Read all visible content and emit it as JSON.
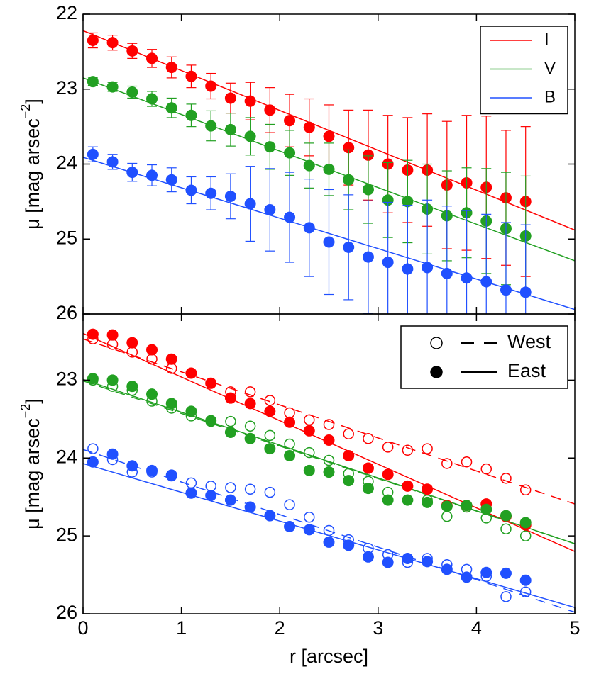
{
  "chart_data": [
    {
      "type": "scatter",
      "ylabel": "μ [mag arsec",
      "ylabel_sup": "−2",
      "ylabel_end": "]",
      "x": [
        0.1,
        0.3,
        0.5,
        0.7,
        0.9,
        1.1,
        1.3,
        1.5,
        1.7,
        1.9,
        2.1,
        2.3,
        2.5,
        2.7,
        2.9,
        3.1,
        3.3,
        3.5,
        3.7,
        3.9,
        4.1,
        4.3,
        4.5
      ],
      "xlim": [
        0,
        5
      ],
      "ylim": [
        22,
        26
      ],
      "invert_y": true,
      "yticks": [
        22,
        23,
        24,
        25,
        26
      ],
      "legend": "upper right",
      "series": [
        {
          "name": "I",
          "color": "#ff0000",
          "values": [
            22.35,
            22.38,
            22.49,
            22.59,
            22.71,
            22.83,
            22.96,
            23.12,
            23.16,
            23.28,
            23.42,
            23.51,
            23.63,
            23.78,
            23.88,
            24.0,
            24.08,
            24.08,
            24.28,
            24.25,
            24.31,
            24.45,
            24.5
          ],
          "errors": [
            0.1,
            0.1,
            0.1,
            0.12,
            0.14,
            0.15,
            0.17,
            0.2,
            0.25,
            0.3,
            0.35,
            0.38,
            0.42,
            0.5,
            0.6,
            0.65,
            0.7,
            0.75,
            0.85,
            0.9,
            0.95,
            0.9,
            1.0
          ],
          "fit_x": [
            0,
            5
          ],
          "fit_values": [
            22.22,
            24.88
          ]
        },
        {
          "name": "V",
          "color": "#22a022",
          "values": [
            22.9,
            22.97,
            23.04,
            23.13,
            23.25,
            23.35,
            23.49,
            23.54,
            23.63,
            23.77,
            23.85,
            24.02,
            24.07,
            24.21,
            24.34,
            24.48,
            24.5,
            24.6,
            24.69,
            24.65,
            24.76,
            24.86,
            24.96
          ],
          "errors": [
            0.05,
            0.06,
            0.08,
            0.1,
            0.13,
            0.15,
            0.2,
            0.22,
            0.25,
            0.3,
            0.3,
            0.3,
            0.35,
            0.4,
            0.45,
            0.5,
            0.55,
            0.6,
            0.6,
            0.6,
            0.7,
            0.75,
            0.8
          ],
          "fit_x": [
            0,
            5
          ],
          "fit_values": [
            22.85,
            25.29
          ]
        },
        {
          "name": "B",
          "color": "#2050ff",
          "values": [
            23.87,
            23.97,
            24.11,
            24.15,
            24.21,
            24.35,
            24.39,
            24.43,
            24.53,
            24.61,
            24.71,
            24.85,
            25.04,
            25.11,
            25.24,
            25.31,
            25.4,
            25.38,
            25.46,
            25.52,
            25.57,
            25.68,
            25.71
          ],
          "errors": [
            0.1,
            0.1,
            0.12,
            0.14,
            0.16,
            0.18,
            0.22,
            0.3,
            0.5,
            0.55,
            0.6,
            0.65,
            0.7,
            0.7,
            0.75,
            0.8,
            0.85,
            0.9,
            0.9,
            0.9,
            0.9,
            0.9,
            0.9
          ],
          "fit_x": [
            0,
            5
          ],
          "fit_values": [
            23.91,
            25.94
          ]
        }
      ]
    },
    {
      "type": "scatter",
      "xlabel": "r [arcsec]",
      "ylabel": "μ [mag arsec",
      "ylabel_sup": "−2",
      "ylabel_end": "]",
      "x": [
        0.1,
        0.3,
        0.5,
        0.7,
        0.9,
        1.1,
        1.3,
        1.5,
        1.7,
        1.9,
        2.1,
        2.3,
        2.5,
        2.7,
        2.9,
        3.1,
        3.3,
        3.5,
        3.7,
        3.9,
        4.1,
        4.3,
        4.5
      ],
      "xlim": [
        0,
        5
      ],
      "xticks": [
        0,
        1,
        2,
        3,
        4,
        5
      ],
      "ylim": [
        22.15,
        26
      ],
      "invert_y": true,
      "yticks": [
        23,
        24,
        25,
        26
      ],
      "legend": "upper right",
      "fit_x": [
        0,
        5
      ],
      "series": [
        {
          "name": "West",
          "marker": "open",
          "line": "dashed",
          "groups": [
            {
              "color": "#ff0000",
              "values": [
                22.47,
                22.54,
                22.64,
                22.73,
                22.85,
                22.91,
                23.04,
                23.15,
                23.15,
                23.26,
                23.42,
                23.51,
                23.57,
                23.69,
                23.75,
                23.86,
                23.9,
                23.88,
                24.07,
                24.05,
                24.14,
                24.26,
                24.41
              ],
              "fit_values": [
                22.47,
                24.59
              ]
            },
            {
              "color": "#22a022",
              "values": [
                23.0,
                23.08,
                23.13,
                23.27,
                23.36,
                23.46,
                23.53,
                23.53,
                23.59,
                23.71,
                23.82,
                23.93,
                24.03,
                24.2,
                24.3,
                24.44,
                24.54,
                24.54,
                24.75,
                24.63,
                24.77,
                24.91,
                25.0
              ],
              "fit_values": [
                23.01,
                25.1
              ]
            },
            {
              "color": "#2050ff",
              "values": [
                23.88,
                24.02,
                24.18,
                24.18,
                24.23,
                24.32,
                24.36,
                24.38,
                24.4,
                24.44,
                24.6,
                24.76,
                24.93,
                25.05,
                25.16,
                25.24,
                25.34,
                25.29,
                25.37,
                25.43,
                25.52,
                25.78,
                25.72
              ],
              "fit_values": [
                23.89,
                25.98
              ]
            }
          ]
        },
        {
          "name": "East",
          "marker": "filled",
          "line": "solid",
          "groups": [
            {
              "color": "#ff0000",
              "values": [
                22.41,
                22.42,
                22.52,
                22.61,
                22.73,
                22.91,
                23.04,
                23.23,
                23.3,
                23.4,
                23.54,
                23.65,
                23.77,
                23.97,
                24.13,
                24.21,
                24.36,
                24.4,
                24.61,
                24.61,
                24.59,
                24.75,
                24.86
              ],
              "fit_values": [
                22.4,
                25.2
              ]
            },
            {
              "color": "#22a022",
              "values": [
                22.98,
                23.0,
                23.08,
                23.18,
                23.3,
                23.4,
                23.52,
                23.67,
                23.75,
                23.88,
                23.97,
                24.16,
                24.18,
                24.29,
                24.39,
                24.54,
                24.54,
                24.57,
                24.62,
                24.61,
                24.66,
                24.74,
                24.83
              ],
              "fit_values": [
                22.99,
                25.1
              ]
            },
            {
              "color": "#2050ff",
              "values": [
                24.05,
                23.95,
                24.1,
                24.16,
                24.22,
                24.45,
                24.48,
                24.54,
                24.63,
                24.74,
                24.88,
                24.92,
                25.08,
                25.12,
                25.27,
                25.34,
                25.29,
                25.33,
                25.43,
                25.53,
                25.47,
                25.48,
                25.57
              ],
              "fit_values": [
                24.07,
                25.92
              ]
            }
          ]
        }
      ]
    }
  ]
}
